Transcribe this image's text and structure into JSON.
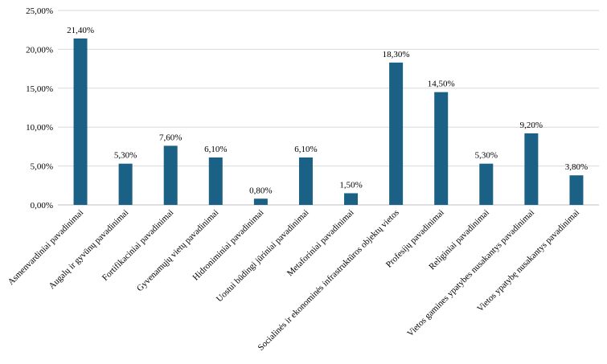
{
  "chart_data": {
    "type": "bar",
    "title": "",
    "xlabel": "",
    "ylabel": "",
    "categories": [
      "Asmenvardiniai pavadinimai",
      "Augalų ir gyvūnų pavadinimai",
      "Fortifikaciniai pavadinimai",
      "Gyvenamųjų vietų pavadinimai",
      "Hidroniminiai pavadinimai",
      "Uostui būdingi jūriniai pavadinimai",
      "Metaforiniai pavadinimai",
      "Socialinės ir ekonominės infrastruktūros objektų vietos",
      "Profesijų pavadinimai",
      "Religiniai pavadinimai",
      "Vietos gamines ypatybes nusakantys pavadinimai",
      "Vietos ypatybę nusakantys pavadinimai"
    ],
    "values": [
      21.4,
      5.3,
      7.6,
      6.1,
      0.8,
      6.1,
      1.5,
      18.3,
      14.5,
      5.3,
      9.2,
      3.8
    ],
    "value_labels": [
      "21,40%",
      "5,30%",
      "7,60%",
      "6,10%",
      "0,80%",
      "6,10%",
      "1,50%",
      "18,30%",
      "14,50%",
      "5,30%",
      "9,20%",
      "3,80%"
    ],
    "ylim": [
      0,
      25
    ],
    "yticks": [
      0,
      5,
      10,
      15,
      20,
      25
    ],
    "ytick_labels": [
      "0,00%",
      "5,00%",
      "10,00%",
      "15,00%",
      "20,00%",
      "25,00%"
    ],
    "grid": true,
    "bar_color": "#1a6185"
  }
}
